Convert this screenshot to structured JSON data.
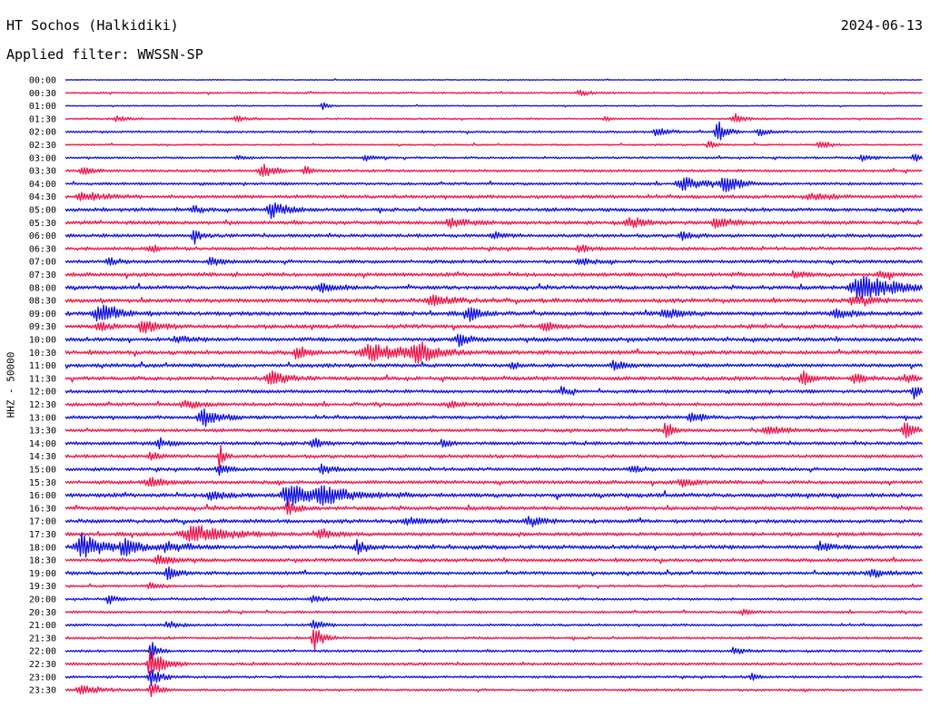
{
  "header": {
    "station": "HT Sochos (Halkidiki)",
    "date": "2024-06-13",
    "filter": "Applied filter: WWSSN-SP"
  },
  "chart_data": {
    "type": "helicorder",
    "ylabel": "HHZ - 50000",
    "colors": [
      "#1010e0",
      "#f0144b"
    ],
    "rows": [
      {
        "label": "00:00",
        "noise": 0.6,
        "events": []
      },
      {
        "label": "00:30",
        "noise": 1.0,
        "events": [
          {
            "x": 0.6,
            "amp": 3,
            "w": 0.012
          }
        ]
      },
      {
        "label": "01:00",
        "noise": 0.7,
        "events": [
          {
            "x": 0.3,
            "amp": 4,
            "w": 0.006
          }
        ]
      },
      {
        "label": "01:30",
        "noise": 1.0,
        "events": [
          {
            "x": 0.06,
            "amp": 3,
            "w": 0.01
          },
          {
            "x": 0.2,
            "amp": 3,
            "w": 0.012
          },
          {
            "x": 0.63,
            "amp": 3,
            "w": 0.006
          },
          {
            "x": 0.78,
            "amp": 6,
            "w": 0.01
          }
        ]
      },
      {
        "label": "02:00",
        "noise": 1.2,
        "events": [
          {
            "x": 0.69,
            "amp": 5,
            "w": 0.01
          },
          {
            "x": 0.76,
            "amp": 14,
            "w": 0.008
          },
          {
            "x": 0.81,
            "amp": 4,
            "w": 0.01
          }
        ]
      },
      {
        "label": "02:30",
        "noise": 1.0,
        "events": [
          {
            "x": 0.75,
            "amp": 5,
            "w": 0.006
          },
          {
            "x": 0.88,
            "amp": 5,
            "w": 0.01
          }
        ]
      },
      {
        "label": "03:00",
        "noise": 1.2,
        "events": [
          {
            "x": 0.2,
            "amp": 3,
            "w": 0.006
          },
          {
            "x": 0.35,
            "amp": 3,
            "w": 0.01
          },
          {
            "x": 0.93,
            "amp": 3,
            "w": 0.01
          },
          {
            "x": 0.99,
            "amp": 5,
            "w": 0.006
          }
        ]
      },
      {
        "label": "03:30",
        "noise": 1.5,
        "events": [
          {
            "x": 0.02,
            "amp": 4,
            "w": 0.01
          },
          {
            "x": 0.23,
            "amp": 9,
            "w": 0.01
          },
          {
            "x": 0.28,
            "amp": 4,
            "w": 0.01
          }
        ]
      },
      {
        "label": "04:00",
        "noise": 1.6,
        "events": [
          {
            "x": 0.72,
            "amp": 7,
            "w": 0.02
          },
          {
            "x": 0.77,
            "amp": 8,
            "w": 0.015
          }
        ]
      },
      {
        "label": "04:30",
        "noise": 2.0,
        "events": [
          {
            "x": 0.02,
            "amp": 5,
            "w": 0.02
          },
          {
            "x": 0.87,
            "amp": 3,
            "w": 0.02
          }
        ]
      },
      {
        "label": "05:00",
        "noise": 2.2,
        "events": [
          {
            "x": 0.24,
            "amp": 9,
            "w": 0.015
          },
          {
            "x": 0.15,
            "amp": 4,
            "w": 0.01
          }
        ]
      },
      {
        "label": "05:30",
        "noise": 2.2,
        "events": [
          {
            "x": 0.45,
            "amp": 5,
            "w": 0.015
          },
          {
            "x": 0.66,
            "amp": 5,
            "w": 0.015
          },
          {
            "x": 0.76,
            "amp": 5,
            "w": 0.015
          }
        ]
      },
      {
        "label": "06:00",
        "noise": 2.0,
        "events": [
          {
            "x": 0.15,
            "amp": 9,
            "w": 0.006
          },
          {
            "x": 0.5,
            "amp": 4,
            "w": 0.01
          },
          {
            "x": 0.72,
            "amp": 4,
            "w": 0.01
          }
        ]
      },
      {
        "label": "06:30",
        "noise": 2.0,
        "events": [
          {
            "x": 0.1,
            "amp": 4,
            "w": 0.01
          },
          {
            "x": 0.6,
            "amp": 4,
            "w": 0.01
          }
        ]
      },
      {
        "label": "07:00",
        "noise": 2.0,
        "events": [
          {
            "x": 0.05,
            "amp": 4,
            "w": 0.01
          },
          {
            "x": 0.17,
            "amp": 5,
            "w": 0.01
          },
          {
            "x": 0.6,
            "amp": 4,
            "w": 0.01
          }
        ]
      },
      {
        "label": "07:30",
        "noise": 2.2,
        "events": [
          {
            "x": 0.85,
            "amp": 4,
            "w": 0.01
          },
          {
            "x": 0.95,
            "amp": 4,
            "w": 0.01
          }
        ]
      },
      {
        "label": "08:00",
        "noise": 2.2,
        "events": [
          {
            "x": 0.3,
            "amp": 5,
            "w": 0.015
          },
          {
            "x": 0.93,
            "amp": 14,
            "w": 0.035
          }
        ]
      },
      {
        "label": "08:30",
        "noise": 2.4,
        "events": [
          {
            "x": 0.43,
            "amp": 5,
            "w": 0.02
          },
          {
            "x": 0.92,
            "amp": 5,
            "w": 0.015
          }
        ]
      },
      {
        "label": "09:00",
        "noise": 2.4,
        "events": [
          {
            "x": 0.04,
            "amp": 9,
            "w": 0.02
          },
          {
            "x": 0.47,
            "amp": 8,
            "w": 0.01
          },
          {
            "x": 0.7,
            "amp": 6,
            "w": 0.015
          },
          {
            "x": 0.9,
            "amp": 4,
            "w": 0.015
          }
        ]
      },
      {
        "label": "09:30",
        "noise": 2.4,
        "events": [
          {
            "x": 0.04,
            "amp": 6,
            "w": 0.01
          },
          {
            "x": 0.09,
            "amp": 7,
            "w": 0.015
          },
          {
            "x": 0.56,
            "amp": 4,
            "w": 0.015
          }
        ]
      },
      {
        "label": "10:00",
        "noise": 2.4,
        "events": [
          {
            "x": 0.46,
            "amp": 7,
            "w": 0.01
          },
          {
            "x": 0.13,
            "amp": 4,
            "w": 0.01
          }
        ]
      },
      {
        "label": "10:30",
        "noise": 2.4,
        "events": [
          {
            "x": 0.27,
            "amp": 7,
            "w": 0.01
          },
          {
            "x": 0.36,
            "amp": 8,
            "w": 0.04
          },
          {
            "x": 0.41,
            "amp": 11,
            "w": 0.015
          }
        ]
      },
      {
        "label": "11:00",
        "noise": 2.2,
        "events": [
          {
            "x": 0.52,
            "amp": 6,
            "w": 0.006
          },
          {
            "x": 0.64,
            "amp": 5,
            "w": 0.01
          }
        ]
      },
      {
        "label": "11:30",
        "noise": 2.2,
        "events": [
          {
            "x": 0.24,
            "amp": 8,
            "w": 0.015
          },
          {
            "x": 0.86,
            "amp": 7,
            "w": 0.01
          },
          {
            "x": 0.92,
            "amp": 6,
            "w": 0.01
          },
          {
            "x": 0.98,
            "amp": 4,
            "w": 0.01
          }
        ]
      },
      {
        "label": "12:00",
        "noise": 2.0,
        "events": [
          {
            "x": 0.58,
            "amp": 5,
            "w": 0.006
          },
          {
            "x": 0.99,
            "amp": 7,
            "w": 0.01
          }
        ]
      },
      {
        "label": "12:30",
        "noise": 2.0,
        "events": [
          {
            "x": 0.14,
            "amp": 4,
            "w": 0.015
          },
          {
            "x": 0.45,
            "amp": 3,
            "w": 0.015
          }
        ]
      },
      {
        "label": "13:00",
        "noise": 2.0,
        "events": [
          {
            "x": 0.16,
            "amp": 10,
            "w": 0.015
          },
          {
            "x": 0.73,
            "amp": 7,
            "w": 0.01
          }
        ]
      },
      {
        "label": "13:30",
        "noise": 2.0,
        "events": [
          {
            "x": 0.7,
            "amp": 11,
            "w": 0.006
          },
          {
            "x": 0.82,
            "amp": 5,
            "w": 0.015
          },
          {
            "x": 0.98,
            "amp": 8,
            "w": 0.01
          }
        ]
      },
      {
        "label": "14:00",
        "noise": 2.0,
        "events": [
          {
            "x": 0.11,
            "amp": 5,
            "w": 0.01
          },
          {
            "x": 0.29,
            "amp": 5,
            "w": 0.01
          },
          {
            "x": 0.44,
            "amp": 6,
            "w": 0.006
          }
        ]
      },
      {
        "label": "14:30",
        "noise": 2.0,
        "events": [
          {
            "x": 0.18,
            "amp": 14,
            "w": 0.004
          },
          {
            "x": 0.1,
            "amp": 4,
            "w": 0.01
          }
        ]
      },
      {
        "label": "15:00",
        "noise": 2.0,
        "events": [
          {
            "x": 0.18,
            "amp": 5,
            "w": 0.01
          },
          {
            "x": 0.3,
            "amp": 5,
            "w": 0.01
          },
          {
            "x": 0.66,
            "amp": 4,
            "w": 0.01
          }
        ]
      },
      {
        "label": "15:30",
        "noise": 2.0,
        "events": [
          {
            "x": 0.1,
            "amp": 4,
            "w": 0.02
          },
          {
            "x": 0.72,
            "amp": 4,
            "w": 0.015
          }
        ]
      },
      {
        "label": "16:00",
        "noise": 2.4,
        "events": [
          {
            "x": 0.26,
            "amp": 13,
            "w": 0.02
          },
          {
            "x": 0.3,
            "amp": 9,
            "w": 0.03
          },
          {
            "x": 0.17,
            "amp": 5,
            "w": 0.015
          }
        ]
      },
      {
        "label": "16:30",
        "noise": 2.2,
        "events": [
          {
            "x": 0.26,
            "amp": 6,
            "w": 0.01
          }
        ]
      },
      {
        "label": "17:00",
        "noise": 2.2,
        "events": [
          {
            "x": 0.4,
            "amp": 4,
            "w": 0.015
          },
          {
            "x": 0.54,
            "amp": 4,
            "w": 0.015
          }
        ]
      },
      {
        "label": "17:30",
        "noise": 2.2,
        "events": [
          {
            "x": 0.15,
            "amp": 9,
            "w": 0.035
          },
          {
            "x": 0.3,
            "amp": 5,
            "w": 0.015
          }
        ]
      },
      {
        "label": "18:00",
        "noise": 2.4,
        "events": [
          {
            "x": 0.02,
            "amp": 13,
            "w": 0.02
          },
          {
            "x": 0.07,
            "amp": 9,
            "w": 0.015
          },
          {
            "x": 0.12,
            "amp": 5,
            "w": 0.02
          },
          {
            "x": 0.34,
            "amp": 7,
            "w": 0.01
          },
          {
            "x": 0.88,
            "amp": 5,
            "w": 0.01
          }
        ]
      },
      {
        "label": "18:30",
        "noise": 2.0,
        "events": [
          {
            "x": 0.11,
            "amp": 5,
            "w": 0.015
          }
        ]
      },
      {
        "label": "19:00",
        "noise": 2.0,
        "events": [
          {
            "x": 0.12,
            "amp": 6,
            "w": 0.01
          },
          {
            "x": 0.94,
            "amp": 4,
            "w": 0.015
          }
        ]
      },
      {
        "label": "19:30",
        "noise": 1.4,
        "events": [
          {
            "x": 0.1,
            "amp": 4,
            "w": 0.01
          }
        ]
      },
      {
        "label": "20:00",
        "noise": 1.4,
        "events": [
          {
            "x": 0.05,
            "amp": 4,
            "w": 0.01
          },
          {
            "x": 0.29,
            "amp": 4,
            "w": 0.01
          }
        ]
      },
      {
        "label": "20:30",
        "noise": 1.4,
        "events": [
          {
            "x": 0.79,
            "amp": 3,
            "w": 0.01
          }
        ]
      },
      {
        "label": "21:00",
        "noise": 1.4,
        "events": [
          {
            "x": 0.12,
            "amp": 4,
            "w": 0.01
          },
          {
            "x": 0.29,
            "amp": 5,
            "w": 0.01
          }
        ]
      },
      {
        "label": "21:30",
        "noise": 1.4,
        "events": [
          {
            "x": 0.29,
            "amp": 14,
            "w": 0.008
          }
        ]
      },
      {
        "label": "22:00",
        "noise": 1.4,
        "events": [
          {
            "x": 0.1,
            "amp": 14,
            "w": 0.006
          },
          {
            "x": 0.78,
            "amp": 4,
            "w": 0.01
          }
        ]
      },
      {
        "label": "22:30",
        "noise": 1.6,
        "events": [
          {
            "x": 0.1,
            "amp": 16,
            "w": 0.012
          }
        ]
      },
      {
        "label": "23:00",
        "noise": 1.4,
        "events": [
          {
            "x": 0.1,
            "amp": 9,
            "w": 0.01
          },
          {
            "x": 0.8,
            "amp": 4,
            "w": 0.006
          }
        ]
      },
      {
        "label": "23:30",
        "noise": 1.4,
        "events": [
          {
            "x": 0.02,
            "amp": 4,
            "w": 0.02
          },
          {
            "x": 0.1,
            "amp": 9,
            "w": 0.008
          }
        ]
      }
    ]
  }
}
